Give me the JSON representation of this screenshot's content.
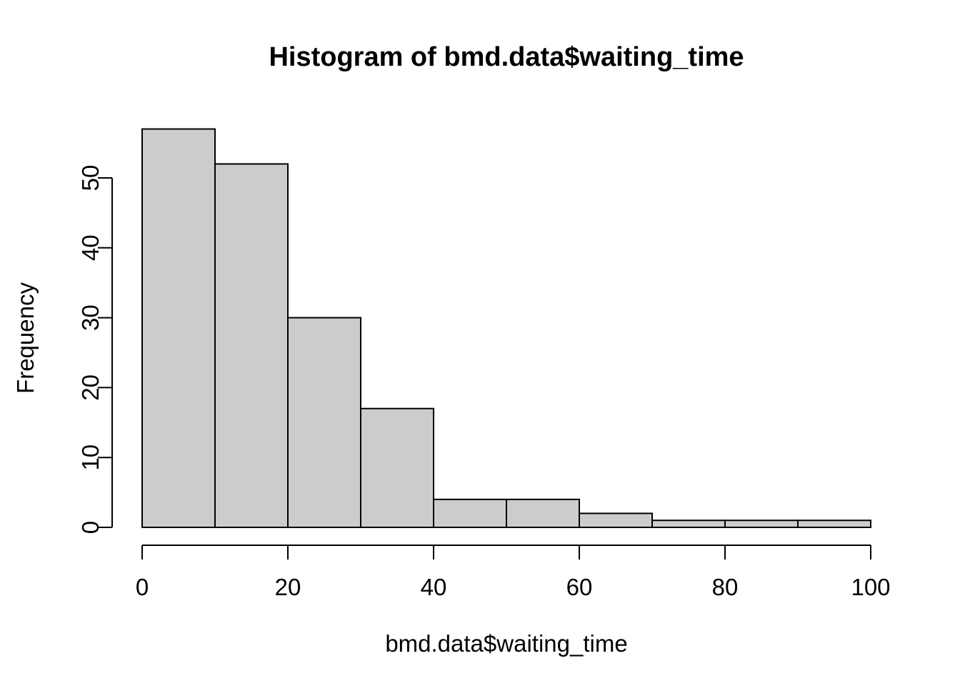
{
  "chart_data": {
    "type": "bar",
    "subtype": "histogram",
    "title": "Histogram of bmd.data$waiting_time",
    "xlabel": "bmd.data$waiting_time",
    "ylabel": "Frequency",
    "bin_edges": [
      0,
      10,
      20,
      30,
      40,
      50,
      60,
      70,
      80,
      90,
      100
    ],
    "counts": [
      57,
      52,
      30,
      17,
      4,
      4,
      2,
      1,
      1,
      1
    ],
    "x_ticks": [
      0,
      20,
      40,
      60,
      80,
      100
    ],
    "y_ticks": [
      0,
      10,
      20,
      30,
      40,
      50
    ],
    "xlim": [
      0,
      100
    ],
    "ylim": [
      0,
      57
    ],
    "grid": "off",
    "legend": "none",
    "bar_fill": "#CCCCCC",
    "bar_stroke": "#000000",
    "axis_color": "#000000",
    "text_color": "#000000",
    "background": "#FFFFFF"
  }
}
